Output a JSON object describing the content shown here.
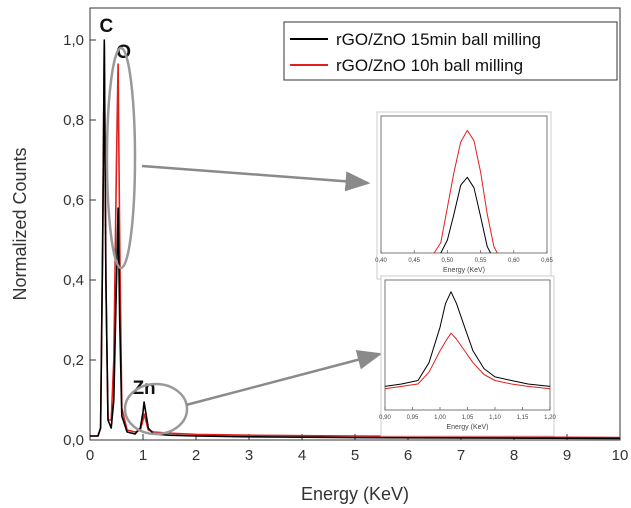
{
  "chart_data": {
    "type": "line",
    "xlabel": "Energy (KeV)",
    "ylabel": "Normalized Counts",
    "xlim": [
      0,
      10
    ],
    "ylim": [
      0,
      1.08
    ],
    "x_ticks": [
      "0",
      "1",
      "2",
      "3",
      "4",
      "5",
      "6",
      "7",
      "8",
      "9",
      "10"
    ],
    "y_ticks": [
      "0,0",
      "0,2",
      "0,4",
      "0,6",
      "0,8",
      "1,0"
    ],
    "legend": {
      "placement": "top-right"
    },
    "series": [
      {
        "name": "rGO/ZnO 15min ball milling",
        "color": "#000000",
        "points": [
          [
            0.0,
            0.01
          ],
          [
            0.15,
            0.01
          ],
          [
            0.2,
            0.03
          ],
          [
            0.24,
            0.5
          ],
          [
            0.27,
            1.0
          ],
          [
            0.3,
            0.4
          ],
          [
            0.34,
            0.05
          ],
          [
            0.4,
            0.03
          ],
          [
            0.45,
            0.1
          ],
          [
            0.5,
            0.4
          ],
          [
            0.53,
            0.58
          ],
          [
            0.56,
            0.3
          ],
          [
            0.6,
            0.06
          ],
          [
            0.7,
            0.02
          ],
          [
            0.85,
            0.015
          ],
          [
            0.95,
            0.03
          ],
          [
            1.0,
            0.07
          ],
          [
            1.02,
            0.095
          ],
          [
            1.05,
            0.07
          ],
          [
            1.1,
            0.03
          ],
          [
            1.2,
            0.015
          ],
          [
            1.5,
            0.012
          ],
          [
            2.0,
            0.01
          ],
          [
            3.0,
            0.008
          ],
          [
            5.0,
            0.006
          ],
          [
            7.0,
            0.005
          ],
          [
            10.0,
            0.004
          ]
        ]
      },
      {
        "name": "rGO/ZnO 10h ball milling",
        "color": "#e0201e",
        "points": [
          [
            0.0,
            0.01
          ],
          [
            0.15,
            0.01
          ],
          [
            0.2,
            0.03
          ],
          [
            0.24,
            0.5
          ],
          [
            0.27,
            0.99
          ],
          [
            0.3,
            0.4
          ],
          [
            0.34,
            0.05
          ],
          [
            0.4,
            0.05
          ],
          [
            0.45,
            0.2
          ],
          [
            0.5,
            0.7
          ],
          [
            0.53,
            0.94
          ],
          [
            0.56,
            0.5
          ],
          [
            0.6,
            0.08
          ],
          [
            0.7,
            0.025
          ],
          [
            0.85,
            0.02
          ],
          [
            0.95,
            0.025
          ],
          [
            1.0,
            0.05
          ],
          [
            1.02,
            0.065
          ],
          [
            1.05,
            0.05
          ],
          [
            1.1,
            0.025
          ],
          [
            1.2,
            0.02
          ],
          [
            1.5,
            0.017
          ],
          [
            2.0,
            0.014
          ],
          [
            3.0,
            0.012
          ],
          [
            5.0,
            0.01
          ],
          [
            7.0,
            0.008
          ],
          [
            10.0,
            0.006
          ]
        ]
      }
    ],
    "peak_labels": [
      {
        "text": "C",
        "x": 0.27,
        "y": 1.0
      },
      {
        "text": "O",
        "x": 0.56,
        "y": 0.94
      },
      {
        "text": "Zn",
        "x": 1.02,
        "y": 0.095
      }
    ],
    "insets": [
      {
        "xlabel": "Energy (KeV)",
        "xlim": [
          0.4,
          0.65
        ],
        "ylim": [
          0,
          1.05
        ],
        "x_ticks": [
          "0,40",
          "0,45",
          "0,50",
          "0,55",
          "0,60",
          "0,65"
        ],
        "series": [
          {
            "color": "#000000",
            "points": [
              [
                0.49,
                0.0
              ],
              [
                0.5,
                0.1
              ],
              [
                0.51,
                0.3
              ],
              [
                0.52,
                0.52
              ],
              [
                0.53,
                0.58
              ],
              [
                0.54,
                0.5
              ],
              [
                0.55,
                0.28
              ],
              [
                0.56,
                0.05
              ],
              [
                0.565,
                0.0
              ]
            ]
          },
          {
            "color": "#e0201e",
            "points": [
              [
                0.48,
                0.0
              ],
              [
                0.49,
                0.08
              ],
              [
                0.5,
                0.35
              ],
              [
                0.51,
                0.62
              ],
              [
                0.52,
                0.85
              ],
              [
                0.53,
                0.94
              ],
              [
                0.54,
                0.86
              ],
              [
                0.55,
                0.62
              ],
              [
                0.56,
                0.3
              ],
              [
                0.57,
                0.05
              ],
              [
                0.575,
                0.0
              ]
            ]
          }
        ]
      },
      {
        "xlabel": "Energy (KeV)",
        "xlim": [
          0.9,
          1.2
        ],
        "ylim": [
          0,
          0.11
        ],
        "x_ticks": [
          "0,90",
          "0,95",
          "1,00",
          "1,05",
          "1,10",
          "1,15",
          "1,20"
        ],
        "series": [
          {
            "color": "#000000",
            "points": [
              [
                0.9,
                0.02
              ],
              [
                0.93,
                0.022
              ],
              [
                0.96,
                0.025
              ],
              [
                0.98,
                0.04
              ],
              [
                1.0,
                0.07
              ],
              [
                1.01,
                0.09
              ],
              [
                1.02,
                0.1
              ],
              [
                1.03,
                0.09
              ],
              [
                1.045,
                0.07
              ],
              [
                1.06,
                0.05
              ],
              [
                1.08,
                0.035
              ],
              [
                1.1,
                0.028
              ],
              [
                1.13,
                0.025
              ],
              [
                1.16,
                0.022
              ],
              [
                1.2,
                0.02
              ]
            ]
          },
          {
            "color": "#e0201e",
            "points": [
              [
                0.9,
                0.018
              ],
              [
                0.93,
                0.02
              ],
              [
                0.96,
                0.022
              ],
              [
                0.98,
                0.032
              ],
              [
                1.0,
                0.05
              ],
              [
                1.01,
                0.058
              ],
              [
                1.02,
                0.065
              ],
              [
                1.03,
                0.06
              ],
              [
                1.045,
                0.05
              ],
              [
                1.06,
                0.04
              ],
              [
                1.08,
                0.03
              ],
              [
                1.1,
                0.025
              ],
              [
                1.13,
                0.022
              ],
              [
                1.16,
                0.02
              ],
              [
                1.2,
                0.018
              ]
            ]
          }
        ]
      }
    ]
  }
}
